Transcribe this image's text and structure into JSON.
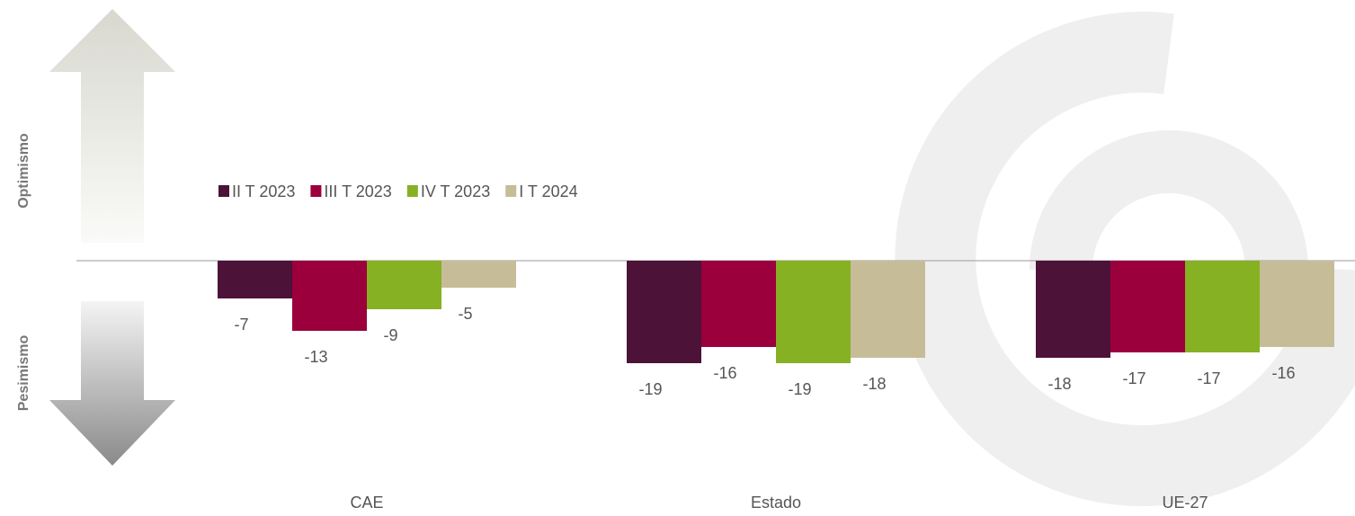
{
  "chart_data": {
    "type": "bar",
    "categories": [
      "CAE",
      "Estado",
      "UE-27"
    ],
    "series": [
      {
        "name": "II T 2023",
        "color": "#4d1238",
        "values": [
          -7,
          -19,
          -18
        ]
      },
      {
        "name": "III T 2023",
        "color": "#9b003c",
        "values": [
          -13,
          -16,
          -17
        ]
      },
      {
        "name": "IV T 2023",
        "color": "#86b123",
        "values": [
          -9,
          -19,
          -17
        ]
      },
      {
        "name": "I T 2024",
        "color": "#c6bd98",
        "values": [
          -5,
          -18,
          -16
        ]
      }
    ],
    "annotations": [
      "Optimismo",
      "Pesimismo"
    ]
  }
}
